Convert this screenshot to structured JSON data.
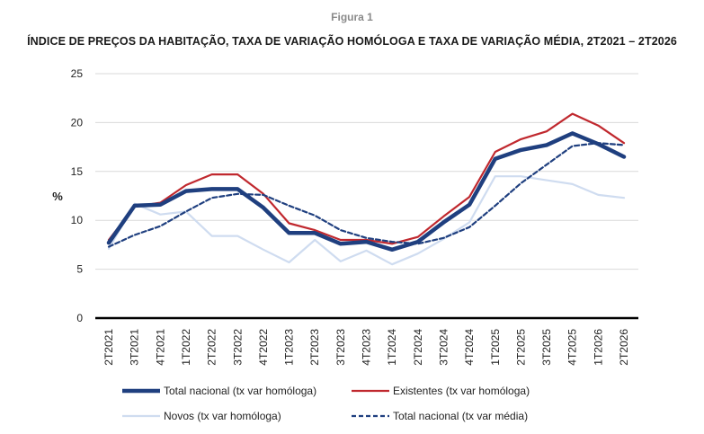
{
  "figure_label": "Figura 1",
  "chart_data": {
    "type": "line",
    "title": "ÍNDICE DE PREÇOS DA HABITAÇÃO, TAXA DE VARIAÇÃO HOMÓLOGA E TAXA DE VARIAÇÃO MÉDIA, 2T2021 – 2T2026",
    "xlabel": "",
    "ylabel": "%",
    "ylim": [
      0,
      25
    ],
    "yticks": [
      0,
      5,
      10,
      15,
      20,
      25
    ],
    "grid": "horizontal",
    "legend_position": "bottom",
    "categories": [
      "2T2021",
      "3T2021",
      "4T2021",
      "1T2022",
      "2T2022",
      "3T2022",
      "4T2022",
      "1T2023",
      "2T2023",
      "3T2023",
      "4T2023",
      "1T2024",
      "2T2024",
      "3T2024",
      "4T2024",
      "1T2025",
      "2T2025",
      "3T2025",
      "4T2025",
      "1T2026",
      "2T2026"
    ],
    "series": [
      {
        "name": "Total nacional (tx var homóloga)",
        "color": "#1f3f7f",
        "style": "solid-thick",
        "values": [
          7.7,
          11.5,
          11.6,
          13.0,
          13.2,
          13.2,
          11.3,
          8.7,
          8.7,
          7.6,
          7.8,
          7.0,
          7.8,
          9.8,
          11.6,
          16.3,
          17.2,
          17.7,
          18.9,
          17.8,
          16.5
        ]
      },
      {
        "name": "Existentes (tx var homóloga)",
        "color": "#c0282e",
        "style": "solid",
        "values": [
          8.0,
          11.4,
          11.8,
          13.6,
          14.7,
          14.7,
          12.7,
          9.7,
          9.0,
          8.0,
          8.0,
          7.6,
          8.3,
          10.4,
          12.4,
          17.0,
          18.3,
          19.1,
          20.9,
          19.7,
          17.9
        ]
      },
      {
        "name": "Novos (tx var homóloga)",
        "color": "#cfdcf0",
        "style": "solid",
        "values": [
          7.1,
          11.7,
          10.6,
          10.9,
          8.4,
          8.4,
          7.0,
          5.7,
          8.0,
          5.8,
          6.9,
          5.5,
          6.6,
          8.1,
          9.8,
          14.5,
          14.5,
          14.1,
          13.7,
          12.6,
          12.3
        ]
      },
      {
        "name": "Total nacional (tx var média)",
        "color": "#1f3f7f",
        "style": "dashed",
        "values": [
          7.3,
          8.5,
          9.4,
          10.9,
          12.3,
          12.7,
          12.6,
          11.5,
          10.5,
          9.0,
          8.2,
          7.8,
          7.6,
          8.2,
          9.3,
          11.5,
          13.8,
          15.7,
          17.6,
          17.9,
          17.7
        ]
      }
    ]
  }
}
